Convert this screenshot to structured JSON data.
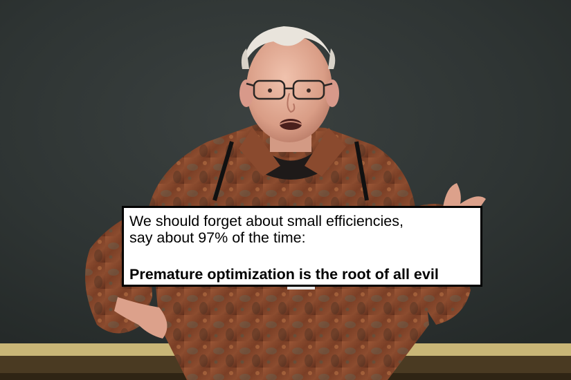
{
  "quote": {
    "line1": "We should forget about small efficiencies,",
    "line2": "say about 97% of the time:",
    "punchline": "Premature optimization is the root of all evil"
  },
  "colors": {
    "chalkboard": "#2f3534",
    "chalk_tray": "#c9b677",
    "box_background": "#ffffff",
    "box_border": "#000000",
    "text": "#000000"
  }
}
